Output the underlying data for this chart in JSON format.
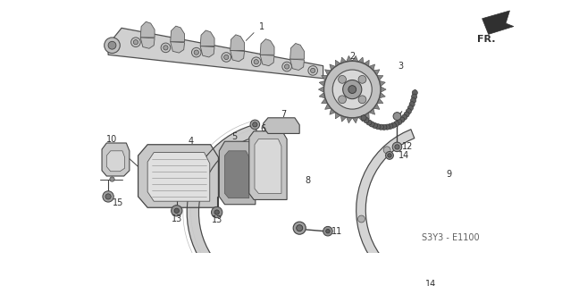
{
  "diagram_code": "S3Y3 - E1100",
  "background_color": "#ffffff",
  "line_color": "#404040",
  "figsize": [
    6.29,
    3.2
  ],
  "dpi": 100
}
